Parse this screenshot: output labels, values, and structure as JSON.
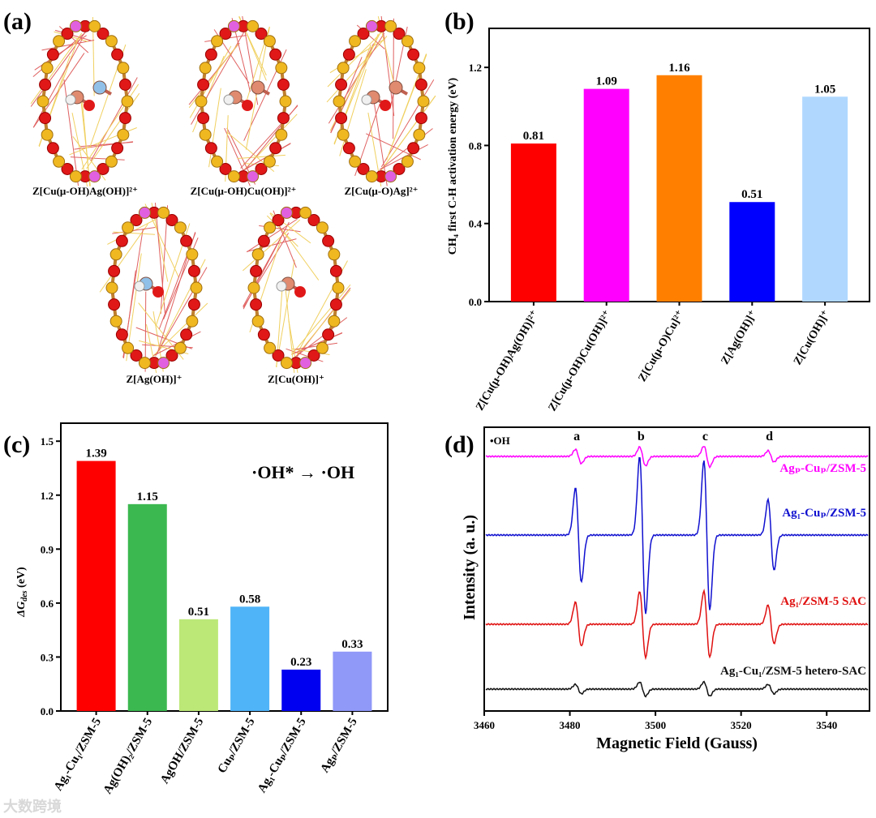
{
  "panel_a": {
    "label": "(a)",
    "structures": [
      {
        "name": "Z[Cu(μ-OH)Ag(OH)]²⁺",
        "metals": [
          "#e08a70",
          "#90c0e8"
        ]
      },
      {
        "name": "Z[Cu(μ-OH)Cu(OH)]²⁺",
        "metals": [
          "#e08a70",
          "#e08a70"
        ]
      },
      {
        "name": "Z[Cu(μ-O)Ag]²⁺",
        "metals": [
          "#e08a70",
          "#e08a70"
        ]
      },
      {
        "name": "Z[Ag(OH)]⁺",
        "metals": [
          "#90c0e8"
        ]
      },
      {
        "name": "Z[Cu(OH)]⁺",
        "metals": [
          "#e08a70"
        ]
      }
    ]
  },
  "chart_data": [
    {
      "panel": "(b)",
      "type": "bar",
      "categories": [
        "Z[Cu(μ-OH)Ag(OH)]²⁺",
        "Z[Cu(μ-OH)Cu(OH)]²⁺",
        "Z[Cu(μ-O)Cu]²⁺",
        "Z[Ag(OH)]⁺",
        "Z[Cu(OH)]⁺"
      ],
      "values": [
        0.81,
        1.09,
        1.16,
        0.51,
        1.05
      ],
      "value_labels": [
        "0.81",
        "1.09",
        "1.16",
        "0.51",
        "1.05"
      ],
      "colors": [
        "#ff0000",
        "#ff00ff",
        "#ff8000",
        "#0000ff",
        "#b0d8ff"
      ],
      "ylabel": "CH₄ first C-H activation energy (eV)",
      "xlabel": "",
      "ylim": [
        0,
        1.4
      ],
      "yticks": [
        "0.0",
        "0.4",
        "0.8",
        "1.2"
      ]
    },
    {
      "panel": "(c)",
      "type": "bar",
      "categories": [
        "Ag₁-Cu₁/ZSM-5",
        "Ag(OH)₂/ZSM-5",
        "AgOH/ZSM-5",
        "Cuₚ/ZSM-5",
        "Ag₁-Cuₚ/ZSM-5",
        "Agₚ/ZSM-5"
      ],
      "values": [
        1.39,
        1.15,
        0.51,
        0.58,
        0.23,
        0.33
      ],
      "value_labels": [
        "1.39",
        "1.15",
        "0.51",
        "0.58",
        "0.23",
        "0.33"
      ],
      "colors": [
        "#ff0000",
        "#3cb850",
        "#bce878",
        "#50b4f8",
        "#0000f0",
        "#9098f8"
      ],
      "ylabel_main": "ΔG",
      "ylabel_sub": "des",
      "ylabel_unit": " (eV)",
      "annotation": "·OH* → ·OH",
      "ylim": [
        0,
        1.6
      ],
      "yticks": [
        "0.0",
        "0.3",
        "0.6",
        "0.9",
        "1.2",
        "1.5"
      ]
    },
    {
      "panel": "(d)",
      "type": "line",
      "xlabel": "Magnetic Field (Gauss)",
      "ylabel": "Intensity (a. u.)",
      "xlim": [
        3460,
        3550
      ],
      "xticks": [
        "3460",
        "3480",
        "3500",
        "3520",
        "3540"
      ],
      "legend_note": "•OH",
      "peak_labels": [
        "a",
        "b",
        "c",
        "d"
      ],
      "peak_positions": [
        3482,
        3497,
        3512,
        3527
      ],
      "series": [
        {
          "name": "Agₚ-Cuₚ/ZSM-5",
          "color": "#ff00ff",
          "relative_amplitudes": [
            0.15,
            0.2,
            0.22,
            0.12
          ]
        },
        {
          "name": "Ag₁-Cuₚ/ZSM-5",
          "color": "#1010d0",
          "relative_amplitudes": [
            0.6,
            1.0,
            0.95,
            0.45
          ]
        },
        {
          "name": "Ag₁/ZSM-5 SAC",
          "color": "#e01010",
          "relative_amplitudes": [
            0.4,
            0.6,
            0.6,
            0.35
          ]
        },
        {
          "name": "Ag₁-Cu₁/ZSM-5 hetero-SAC",
          "color": "#101010",
          "relative_amplitudes": [
            0.1,
            0.15,
            0.15,
            0.1
          ]
        }
      ]
    }
  ],
  "watermark": "大数跨境"
}
